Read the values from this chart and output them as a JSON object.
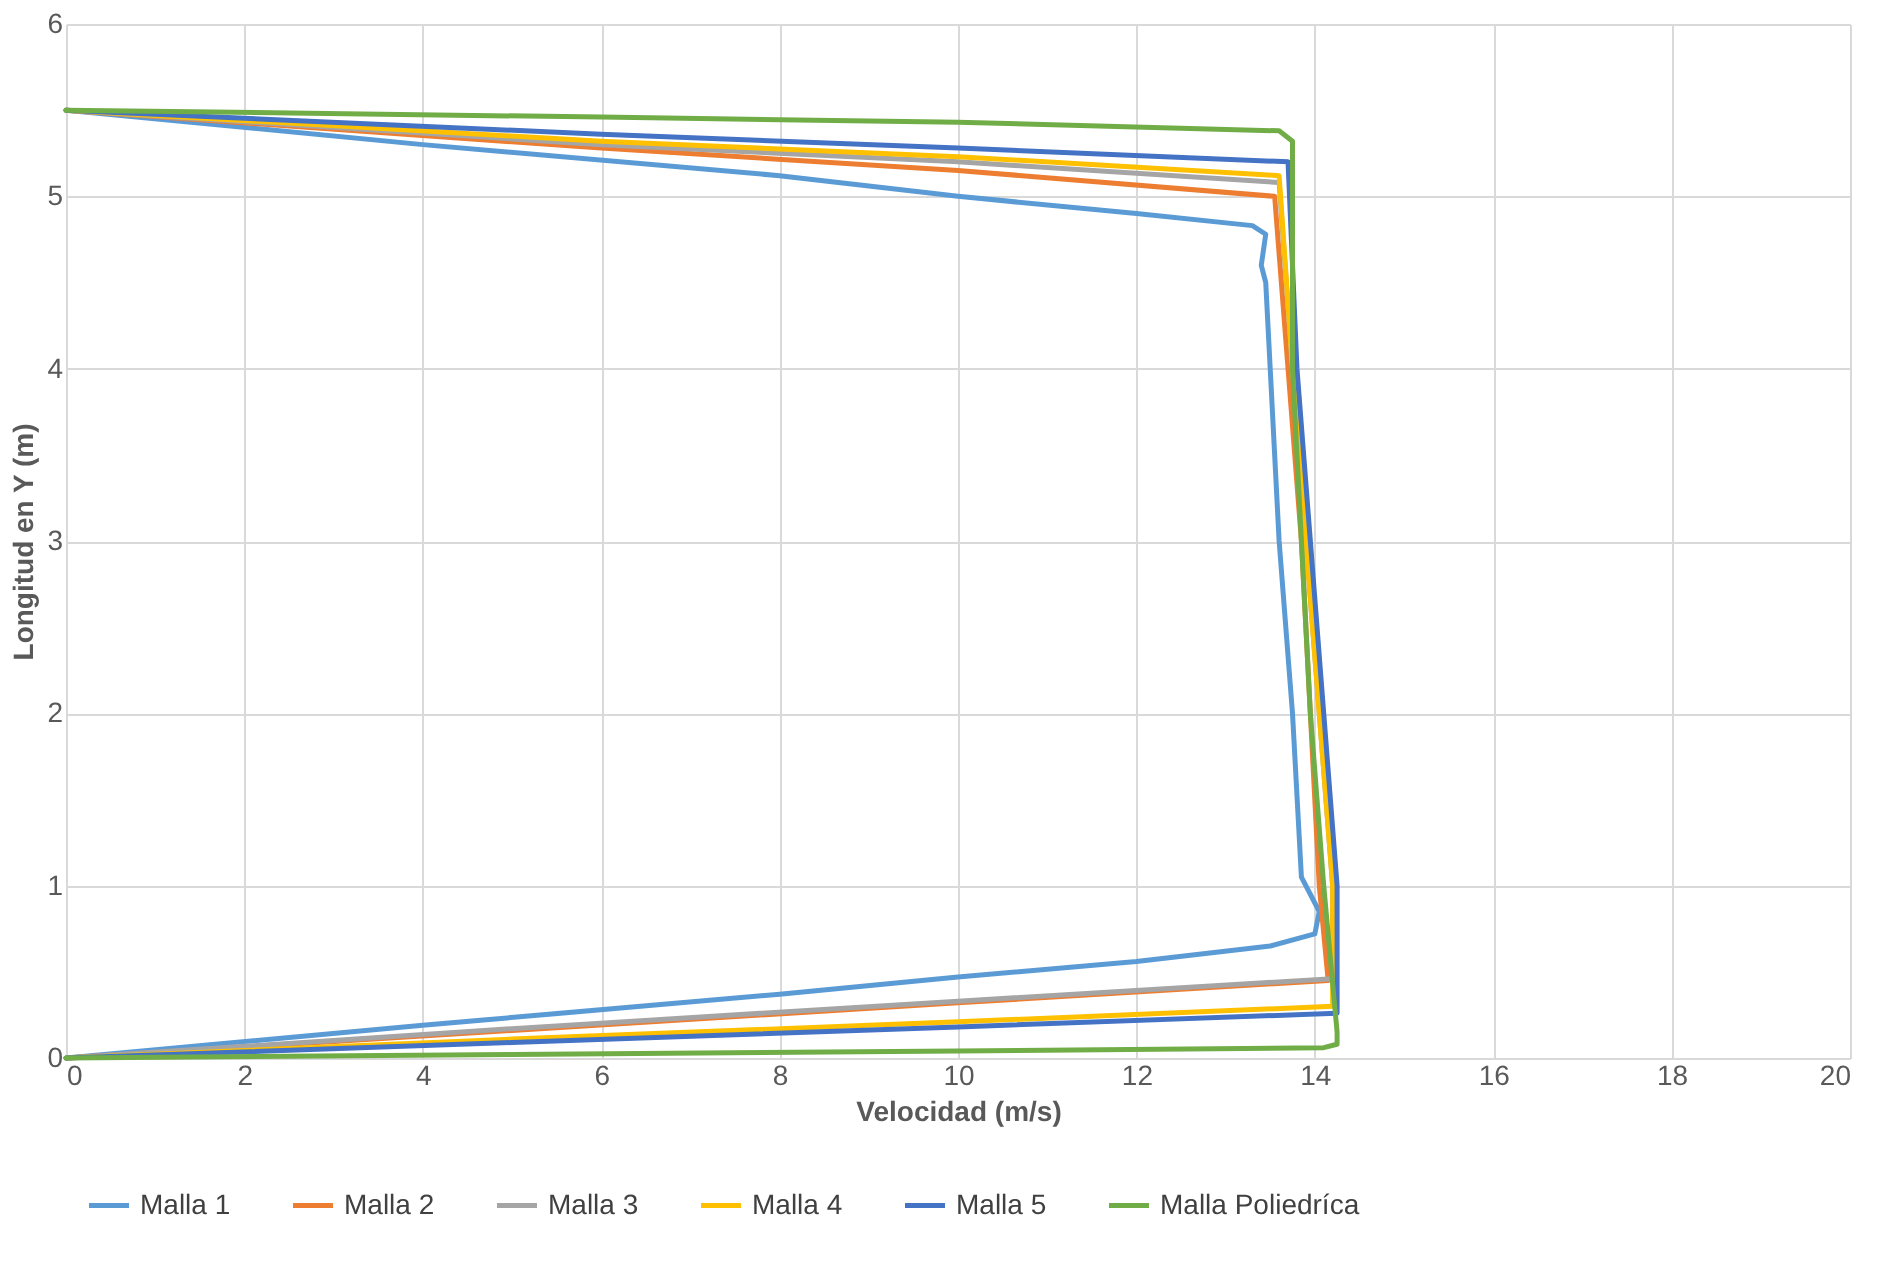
{
  "chart_data": {
    "type": "line",
    "xlabel": "Velocidad (m/s)",
    "ylabel": "Longitud en Y (m)",
    "xlim": [
      0,
      20
    ],
    "xticks": [
      0,
      2,
      4,
      6,
      8,
      10,
      12,
      14,
      16,
      18,
      20
    ],
    "ylim": [
      0,
      6
    ],
    "yticks": [
      0,
      1,
      2,
      3,
      4,
      5,
      6
    ],
    "grid": true,
    "legend": "bottom",
    "marker": "none",
    "line_style": "solid",
    "series": [
      {
        "name": "Malla 1",
        "color": "#5b9bd5",
        "x": [
          0,
          4,
          8,
          10,
          12,
          13.3,
          13.45,
          13.4,
          13.45,
          13.5,
          13.6,
          13.75,
          13.85,
          14.05,
          14.0,
          13.5,
          12,
          10,
          8,
          4,
          0
        ],
        "values": [
          5.5,
          5.3,
          5.12,
          5.0,
          4.9,
          4.83,
          4.78,
          4.6,
          4.5,
          4.0,
          3.0,
          2.0,
          1.05,
          0.85,
          0.72,
          0.65,
          0.56,
          0.47,
          0.37,
          0.19,
          0
        ]
      },
      {
        "name": "Malla 2",
        "color": "#ed7d31",
        "x": [
          0,
          6,
          10,
          13.55,
          13.7,
          13.85,
          13.95,
          14.05,
          14.15,
          10,
          5,
          0
        ],
        "values": [
          5.5,
          5.28,
          5.15,
          5.0,
          4.0,
          3.0,
          2.0,
          1.0,
          0.45,
          0.32,
          0.16,
          0
        ]
      },
      {
        "name": "Malla 3",
        "color": "#a5a5a5",
        "x": [
          0,
          6,
          10,
          13.6,
          13.75,
          13.9,
          14.05,
          14.2,
          14.2,
          10,
          5,
          0
        ],
        "values": [
          5.5,
          5.3,
          5.2,
          5.08,
          4.0,
          3.0,
          2.0,
          1.0,
          0.46,
          0.33,
          0.17,
          0
        ]
      },
      {
        "name": "Malla 4",
        "color": "#ffc000",
        "x": [
          0,
          6,
          10,
          13.6,
          13.75,
          13.9,
          14.05,
          14.2,
          14.2,
          10,
          5,
          0
        ],
        "values": [
          5.5,
          5.32,
          5.23,
          5.12,
          4.0,
          3.0,
          2.0,
          1.0,
          0.3,
          0.21,
          0.11,
          0
        ]
      },
      {
        "name": "Malla 5",
        "color": "#4472c4",
        "x": [
          0,
          6,
          10,
          13.7,
          13.8,
          13.95,
          14.1,
          14.25,
          14.25,
          10,
          5,
          0
        ],
        "values": [
          5.5,
          5.36,
          5.28,
          5.2,
          4.0,
          3.0,
          2.0,
          1.0,
          0.26,
          0.18,
          0.09,
          0
        ]
      },
      {
        "name": "Malla Poliedríca",
        "color": "#70ad47",
        "x": [
          0,
          6,
          10,
          13.6,
          13.75,
          13.75,
          13.85,
          13.95,
          14.1,
          14.25,
          14.25,
          14.1,
          10,
          5,
          0
        ],
        "values": [
          5.5,
          5.46,
          5.43,
          5.38,
          5.32,
          4.0,
          3.0,
          2.0,
          1.0,
          0.15,
          0.08,
          0.06,
          0.04,
          0.02,
          0
        ]
      }
    ]
  }
}
